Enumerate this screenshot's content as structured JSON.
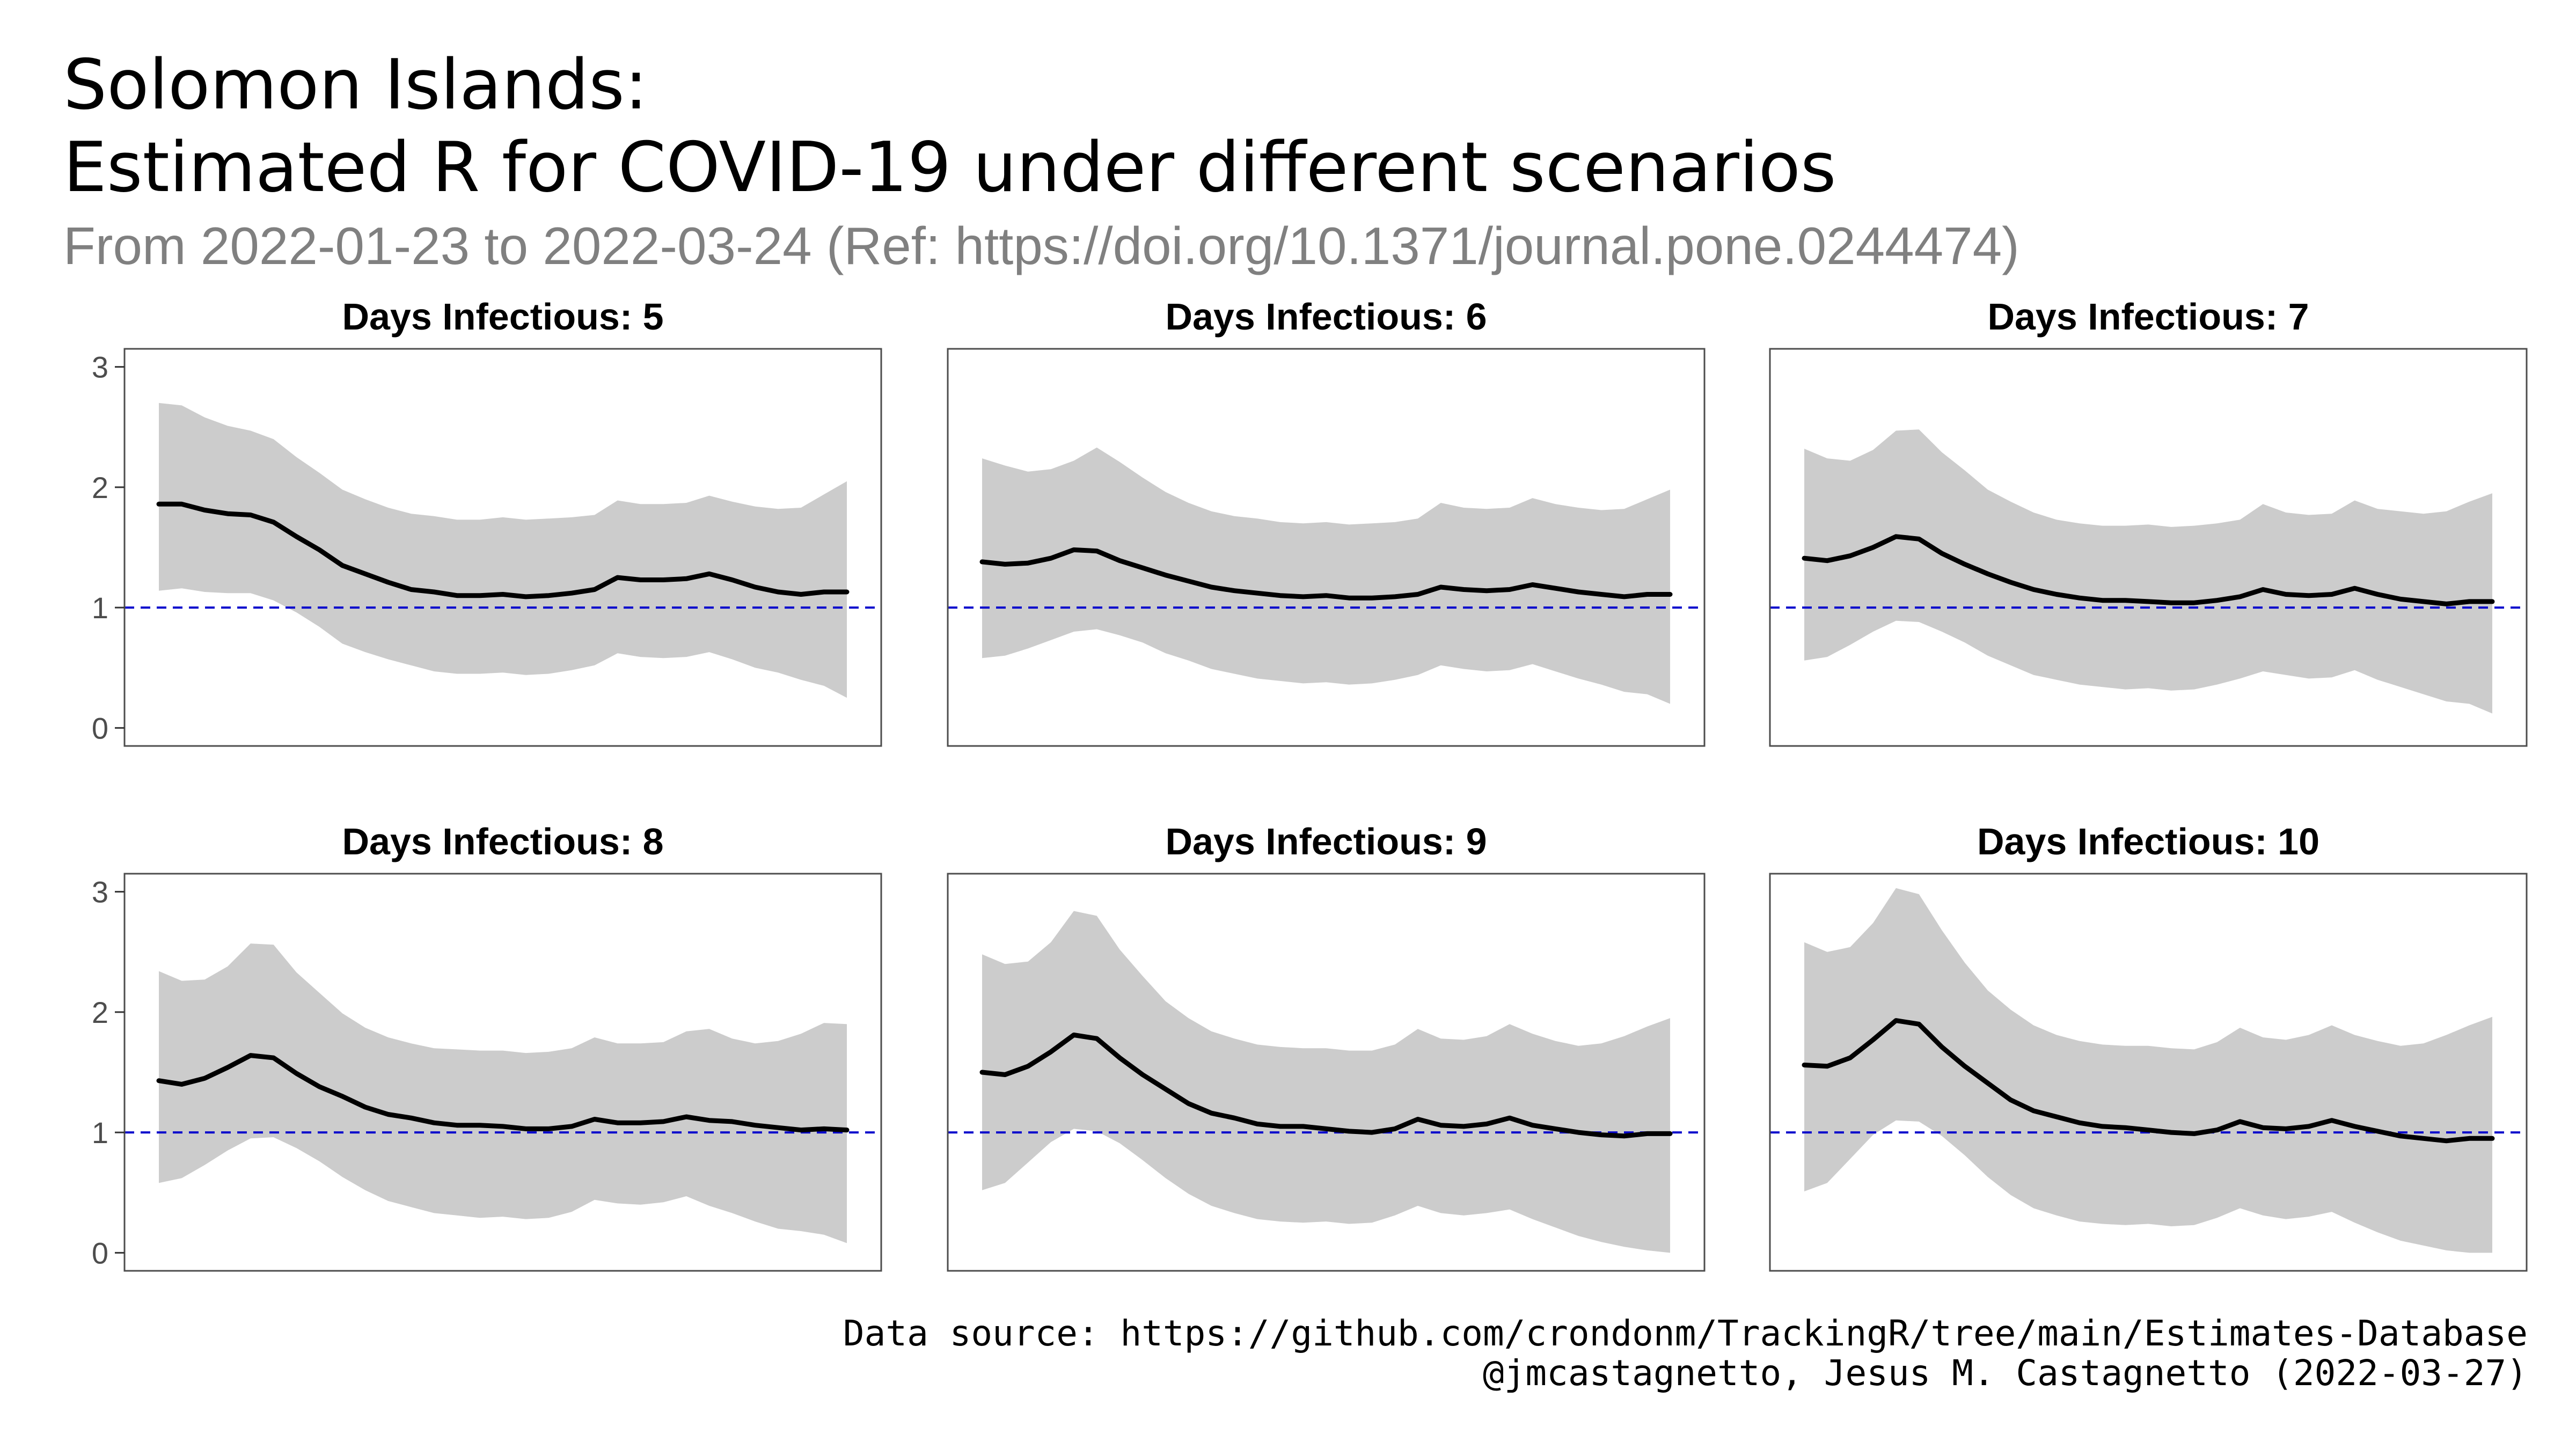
{
  "header": {
    "title_line1": "Solomon Islands:",
    "title_line2": "Estimated R for COVID-19 under different scenarios",
    "subtitle": "From 2022-01-23 to 2022-03-24 (Ref: https://doi.org/10.1371/journal.pone.0244474)"
  },
  "footer": {
    "line1": "Data source: https://github.com/crondonm/TrackingR/tree/main/Estimates-Database",
    "line2": "@jmcastagnetto, Jesus M. Castagnetto (2022-03-27)"
  },
  "colors": {
    "band": "#cccccc",
    "line": "#000000",
    "reference": "#0000cc",
    "panel_border": "#4d4d4d"
  },
  "chart_data": {
    "type": "line",
    "ylim": [
      -0.15,
      3.15
    ],
    "yticks": [
      "0",
      "1",
      "2",
      "3"
    ],
    "reference_line": 1,
    "grid": false,
    "x_start": "2022-01-23",
    "x_end": "2022-03-24",
    "panels": [
      {
        "title": "Days Infectious: 5",
        "x": [
          "2022-01-23",
          "2022-01-25",
          "2022-01-27",
          "2022-01-29",
          "2022-01-31",
          "2022-02-02",
          "2022-02-04",
          "2022-02-06",
          "2022-02-08",
          "2022-02-10",
          "2022-02-12",
          "2022-02-14",
          "2022-02-16",
          "2022-02-18",
          "2022-02-20",
          "2022-02-22",
          "2022-02-24",
          "2022-02-26",
          "2022-02-28",
          "2022-03-02",
          "2022-03-04",
          "2022-03-06",
          "2022-03-08",
          "2022-03-10",
          "2022-03-12",
          "2022-03-14",
          "2022-03-16",
          "2022-03-18",
          "2022-03-20",
          "2022-03-22",
          "2022-03-24"
        ],
        "values": [
          1.86,
          1.86,
          1.81,
          1.78,
          1.77,
          1.71,
          1.59,
          1.48,
          1.35,
          1.28,
          1.21,
          1.15,
          1.13,
          1.1,
          1.1,
          1.11,
          1.09,
          1.1,
          1.12,
          1.15,
          1.25,
          1.23,
          1.23,
          1.24,
          1.28,
          1.23,
          1.17,
          1.13,
          1.11,
          1.13,
          1.13
        ],
        "lower": [
          1.14,
          1.16,
          1.13,
          1.12,
          1.12,
          1.06,
          0.96,
          0.84,
          0.7,
          0.63,
          0.57,
          0.52,
          0.47,
          0.45,
          0.45,
          0.46,
          0.44,
          0.45,
          0.48,
          0.52,
          0.62,
          0.59,
          0.58,
          0.59,
          0.63,
          0.57,
          0.5,
          0.46,
          0.4,
          0.35,
          0.25
        ],
        "upper": [
          2.7,
          2.68,
          2.58,
          2.51,
          2.47,
          2.4,
          2.25,
          2.12,
          1.98,
          1.9,
          1.83,
          1.78,
          1.76,
          1.73,
          1.73,
          1.75,
          1.73,
          1.74,
          1.75,
          1.77,
          1.89,
          1.86,
          1.86,
          1.87,
          1.93,
          1.88,
          1.84,
          1.82,
          1.83,
          1.94,
          2.05
        ]
      },
      {
        "title": "Days Infectious: 6",
        "x": [
          "2022-01-23",
          "2022-01-25",
          "2022-01-27",
          "2022-01-29",
          "2022-01-31",
          "2022-02-02",
          "2022-02-04",
          "2022-02-06",
          "2022-02-08",
          "2022-02-10",
          "2022-02-12",
          "2022-02-14",
          "2022-02-16",
          "2022-02-18",
          "2022-02-20",
          "2022-02-22",
          "2022-02-24",
          "2022-02-26",
          "2022-02-28",
          "2022-03-02",
          "2022-03-04",
          "2022-03-06",
          "2022-03-08",
          "2022-03-10",
          "2022-03-12",
          "2022-03-14",
          "2022-03-16",
          "2022-03-18",
          "2022-03-20",
          "2022-03-22",
          "2022-03-24"
        ],
        "values": [
          1.38,
          1.36,
          1.37,
          1.41,
          1.48,
          1.47,
          1.39,
          1.33,
          1.27,
          1.22,
          1.17,
          1.14,
          1.12,
          1.1,
          1.09,
          1.1,
          1.08,
          1.08,
          1.09,
          1.11,
          1.17,
          1.15,
          1.14,
          1.15,
          1.19,
          1.16,
          1.13,
          1.11,
          1.09,
          1.11,
          1.11
        ],
        "lower": [
          0.58,
          0.6,
          0.66,
          0.73,
          0.8,
          0.82,
          0.77,
          0.71,
          0.62,
          0.56,
          0.49,
          0.45,
          0.41,
          0.39,
          0.37,
          0.38,
          0.36,
          0.37,
          0.4,
          0.44,
          0.52,
          0.49,
          0.47,
          0.48,
          0.53,
          0.47,
          0.41,
          0.36,
          0.3,
          0.28,
          0.2
        ],
        "upper": [
          2.24,
          2.18,
          2.13,
          2.15,
          2.22,
          2.33,
          2.21,
          2.08,
          1.96,
          1.87,
          1.8,
          1.76,
          1.74,
          1.71,
          1.7,
          1.71,
          1.69,
          1.7,
          1.71,
          1.74,
          1.87,
          1.83,
          1.82,
          1.83,
          1.91,
          1.86,
          1.83,
          1.81,
          1.82,
          1.9,
          1.98
        ]
      },
      {
        "title": "Days Infectious: 7",
        "x": [
          "2022-01-23",
          "2022-01-25",
          "2022-01-27",
          "2022-01-29",
          "2022-01-31",
          "2022-02-02",
          "2022-02-04",
          "2022-02-06",
          "2022-02-08",
          "2022-02-10",
          "2022-02-12",
          "2022-02-14",
          "2022-02-16",
          "2022-02-18",
          "2022-02-20",
          "2022-02-22",
          "2022-02-24",
          "2022-02-26",
          "2022-02-28",
          "2022-03-02",
          "2022-03-04",
          "2022-03-06",
          "2022-03-08",
          "2022-03-10",
          "2022-03-12",
          "2022-03-14",
          "2022-03-16",
          "2022-03-18",
          "2022-03-20",
          "2022-03-22",
          "2022-03-24"
        ],
        "values": [
          1.41,
          1.39,
          1.43,
          1.5,
          1.59,
          1.57,
          1.45,
          1.36,
          1.28,
          1.21,
          1.15,
          1.11,
          1.08,
          1.06,
          1.06,
          1.05,
          1.04,
          1.04,
          1.06,
          1.09,
          1.15,
          1.11,
          1.1,
          1.11,
          1.16,
          1.11,
          1.07,
          1.05,
          1.03,
          1.05,
          1.05
        ],
        "lower": [
          0.56,
          0.59,
          0.69,
          0.8,
          0.89,
          0.88,
          0.8,
          0.71,
          0.6,
          0.52,
          0.44,
          0.4,
          0.36,
          0.34,
          0.32,
          0.33,
          0.31,
          0.32,
          0.36,
          0.41,
          0.47,
          0.44,
          0.41,
          0.42,
          0.48,
          0.4,
          0.34,
          0.28,
          0.22,
          0.2,
          0.12
        ],
        "upper": [
          2.32,
          2.24,
          2.22,
          2.31,
          2.47,
          2.48,
          2.29,
          2.14,
          1.98,
          1.88,
          1.79,
          1.73,
          1.7,
          1.68,
          1.68,
          1.69,
          1.67,
          1.68,
          1.7,
          1.73,
          1.86,
          1.79,
          1.77,
          1.78,
          1.89,
          1.82,
          1.8,
          1.78,
          1.8,
          1.88,
          1.95
        ]
      },
      {
        "title": "Days Infectious: 8",
        "x": [
          "2022-01-23",
          "2022-01-25",
          "2022-01-27",
          "2022-01-29",
          "2022-01-31",
          "2022-02-02",
          "2022-02-04",
          "2022-02-06",
          "2022-02-08",
          "2022-02-10",
          "2022-02-12",
          "2022-02-14",
          "2022-02-16",
          "2022-02-18",
          "2022-02-20",
          "2022-02-22",
          "2022-02-24",
          "2022-02-26",
          "2022-02-28",
          "2022-03-02",
          "2022-03-04",
          "2022-03-06",
          "2022-03-08",
          "2022-03-10",
          "2022-03-12",
          "2022-03-14",
          "2022-03-16",
          "2022-03-18",
          "2022-03-20",
          "2022-03-22",
          "2022-03-24"
        ],
        "values": [
          1.43,
          1.4,
          1.45,
          1.54,
          1.64,
          1.62,
          1.49,
          1.38,
          1.3,
          1.21,
          1.15,
          1.12,
          1.08,
          1.06,
          1.06,
          1.05,
          1.03,
          1.03,
          1.05,
          1.11,
          1.08,
          1.08,
          1.09,
          1.13,
          1.1,
          1.09,
          1.06,
          1.04,
          1.02,
          1.03,
          1.02
        ],
        "lower": [
          0.58,
          0.62,
          0.73,
          0.85,
          0.95,
          0.96,
          0.87,
          0.76,
          0.63,
          0.52,
          0.43,
          0.38,
          0.33,
          0.31,
          0.29,
          0.3,
          0.28,
          0.29,
          0.34,
          0.44,
          0.41,
          0.4,
          0.42,
          0.47,
          0.39,
          0.33,
          0.26,
          0.2,
          0.18,
          0.15,
          0.08
        ],
        "upper": [
          2.34,
          2.26,
          2.27,
          2.38,
          2.57,
          2.56,
          2.33,
          2.16,
          1.99,
          1.87,
          1.79,
          1.74,
          1.7,
          1.69,
          1.68,
          1.68,
          1.66,
          1.67,
          1.7,
          1.79,
          1.74,
          1.74,
          1.75,
          1.84,
          1.86,
          1.78,
          1.74,
          1.76,
          1.82,
          1.91,
          1.9
        ]
      },
      {
        "title": "Days Infectious: 9",
        "x": [
          "2022-01-23",
          "2022-01-25",
          "2022-01-27",
          "2022-01-29",
          "2022-01-31",
          "2022-02-02",
          "2022-02-04",
          "2022-02-06",
          "2022-02-08",
          "2022-02-10",
          "2022-02-12",
          "2022-02-14",
          "2022-02-16",
          "2022-02-18",
          "2022-02-20",
          "2022-02-22",
          "2022-02-24",
          "2022-02-26",
          "2022-02-28",
          "2022-03-02",
          "2022-03-04",
          "2022-03-06",
          "2022-03-08",
          "2022-03-10",
          "2022-03-12",
          "2022-03-14",
          "2022-03-16",
          "2022-03-18",
          "2022-03-20",
          "2022-03-22",
          "2022-03-24"
        ],
        "values": [
          1.5,
          1.48,
          1.55,
          1.67,
          1.81,
          1.78,
          1.62,
          1.48,
          1.36,
          1.24,
          1.16,
          1.12,
          1.07,
          1.05,
          1.05,
          1.03,
          1.01,
          1.0,
          1.03,
          1.11,
          1.06,
          1.05,
          1.07,
          1.12,
          1.06,
          1.03,
          1.0,
          0.98,
          0.97,
          0.99,
          0.99
        ],
        "lower": [
          0.52,
          0.58,
          0.75,
          0.92,
          1.03,
          1.01,
          0.91,
          0.77,
          0.62,
          0.49,
          0.39,
          0.33,
          0.28,
          0.26,
          0.25,
          0.26,
          0.24,
          0.25,
          0.31,
          0.39,
          0.33,
          0.31,
          0.33,
          0.36,
          0.28,
          0.21,
          0.14,
          0.09,
          0.05,
          0.02,
          0.0
        ],
        "upper": [
          2.48,
          2.4,
          2.42,
          2.58,
          2.84,
          2.8,
          2.52,
          2.3,
          2.09,
          1.95,
          1.84,
          1.78,
          1.73,
          1.71,
          1.7,
          1.7,
          1.68,
          1.68,
          1.73,
          1.86,
          1.78,
          1.77,
          1.8,
          1.9,
          1.82,
          1.76,
          1.72,
          1.74,
          1.8,
          1.88,
          1.95
        ]
      },
      {
        "title": "Days Infectious: 10",
        "x": [
          "2022-01-23",
          "2022-01-25",
          "2022-01-27",
          "2022-01-29",
          "2022-01-31",
          "2022-02-02",
          "2022-02-04",
          "2022-02-06",
          "2022-02-08",
          "2022-02-10",
          "2022-02-12",
          "2022-02-14",
          "2022-02-16",
          "2022-02-18",
          "2022-02-20",
          "2022-02-22",
          "2022-02-24",
          "2022-02-26",
          "2022-02-28",
          "2022-03-02",
          "2022-03-04",
          "2022-03-06",
          "2022-03-08",
          "2022-03-10",
          "2022-03-12",
          "2022-03-14",
          "2022-03-16",
          "2022-03-18",
          "2022-03-20",
          "2022-03-22",
          "2022-03-24"
        ],
        "values": [
          1.56,
          1.55,
          1.62,
          1.77,
          1.93,
          1.9,
          1.71,
          1.55,
          1.41,
          1.27,
          1.18,
          1.13,
          1.08,
          1.05,
          1.04,
          1.02,
          1.0,
          0.99,
          1.02,
          1.09,
          1.04,
          1.03,
          1.05,
          1.1,
          1.05,
          1.01,
          0.97,
          0.95,
          0.93,
          0.95,
          0.95
        ],
        "lower": [
          0.51,
          0.58,
          0.78,
          0.98,
          1.1,
          1.09,
          0.97,
          0.81,
          0.63,
          0.48,
          0.37,
          0.31,
          0.26,
          0.24,
          0.23,
          0.24,
          0.22,
          0.23,
          0.29,
          0.37,
          0.31,
          0.28,
          0.3,
          0.34,
          0.25,
          0.17,
          0.1,
          0.06,
          0.02,
          0.0,
          0.0
        ],
        "upper": [
          2.58,
          2.5,
          2.54,
          2.74,
          3.03,
          2.98,
          2.68,
          2.41,
          2.18,
          2.02,
          1.89,
          1.81,
          1.76,
          1.73,
          1.72,
          1.72,
          1.7,
          1.69,
          1.75,
          1.87,
          1.79,
          1.77,
          1.81,
          1.89,
          1.81,
          1.76,
          1.72,
          1.74,
          1.81,
          1.89,
          1.96
        ]
      }
    ]
  }
}
